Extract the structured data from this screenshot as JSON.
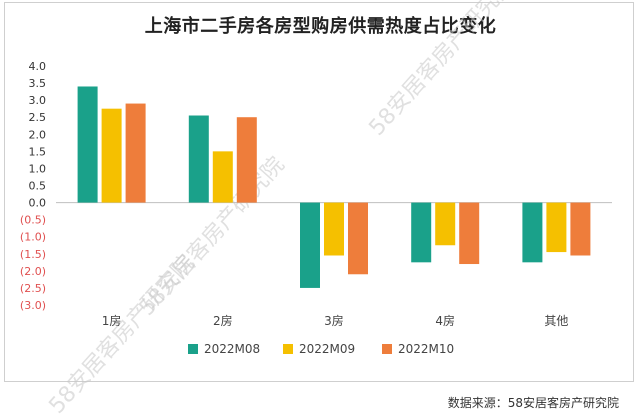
{
  "title": "上海市二手房各房型购房供需热度占比变化",
  "source": "数据来源：58安居客房产研究院",
  "watermark_text": "58安居客房产研究院",
  "colors": {
    "2022M08": "#1aa18a",
    "2022M09": "#f5c000",
    "2022M10": "#ee7d3b",
    "negative_tick": "#e05050",
    "tick": "#333333",
    "zero_line": "#bfbfbf"
  },
  "chart_data": {
    "type": "bar",
    "title": "上海市二手房各房型购房供需热度占比变化",
    "categories": [
      "1房",
      "2房",
      "3房",
      "4房",
      "其他"
    ],
    "series": [
      {
        "name": "2022M08",
        "values": [
          3.4,
          2.55,
          -2.5,
          -1.75,
          -1.75
        ]
      },
      {
        "name": "2022M09",
        "values": [
          2.75,
          1.5,
          -1.55,
          -1.25,
          -1.45
        ]
      },
      {
        "name": "2022M10",
        "values": [
          2.9,
          2.5,
          -2.1,
          -1.8,
          -1.55
        ]
      }
    ],
    "ylim": [
      -3.0,
      4.0
    ],
    "yticks": [
      4.0,
      3.5,
      3.0,
      2.5,
      2.0,
      1.5,
      1.0,
      0.5,
      0.0,
      -0.5,
      -1.0,
      -1.5,
      -2.0,
      -2.5,
      -3.0
    ],
    "ytick_labels": [
      "4.0",
      "3.5",
      "3.0",
      "2.5",
      "2.0",
      "1.5",
      "1.0",
      "0.5",
      "0.0",
      "(0.5)",
      "(1.0)",
      "(1.5)",
      "(2.0)",
      "(2.5)",
      "(3.0)"
    ],
    "legend_position": "bottom",
    "grid": false
  }
}
